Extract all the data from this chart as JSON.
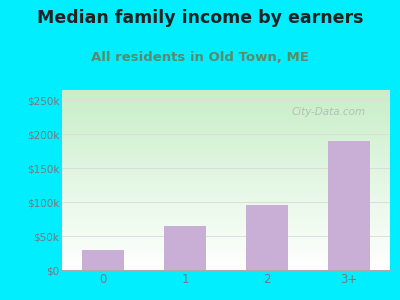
{
  "title": "Median family income by earners",
  "subtitle": "All residents in Old Town, ME",
  "categories": [
    "0",
    "1",
    "2",
    "3+"
  ],
  "values": [
    30000,
    65000,
    95000,
    190000
  ],
  "bar_color": "#c9aed6",
  "yticks": [
    0,
    50000,
    100000,
    150000,
    200000,
    250000
  ],
  "ytick_labels": [
    "$0",
    "$50k",
    "$100k",
    "$150k",
    "$200k",
    "$250k"
  ],
  "ylim": [
    0,
    265000
  ],
  "background_outer": "#00eeff",
  "title_color": "#222222",
  "subtitle_color": "#5a8a6a",
  "tick_color": "#777777",
  "grid_color": "#dddddd",
  "title_fontsize": 12.5,
  "subtitle_fontsize": 9.5,
  "watermark": "City-Data.com",
  "grad_top": "#c8eec8",
  "grad_bottom": "#ffffff"
}
